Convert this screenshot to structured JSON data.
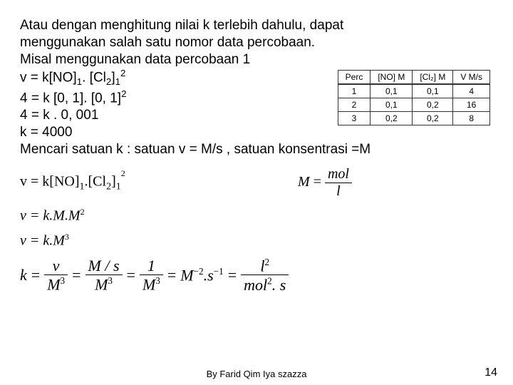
{
  "text": {
    "line1": "Atau dengan menghitung nilai k terlebih dahulu, dapat",
    "line2": "menggunakan salah satu nomor data percobaan.",
    "line3": "Misal menggunakan data percobaan 1",
    "line4a": "v = k[NO]",
    "line4b": ". [Cl",
    "line4c": "]",
    "line5a": "4 = k [0, 1]. [0, 1]",
    "line6": "4 = k . 0, 001",
    "line7": "k = 4000",
    "line8": "Mencari satuan k :  satuan v = M/s , satuan konsentrasi =M"
  },
  "subscripts": {
    "no": "1",
    "cl": "2",
    "cl_exp_sub": "1"
  },
  "superscripts": {
    "cl_exp": "2",
    "line5": "2"
  },
  "table": {
    "headers": [
      "Perc",
      "[NO] M",
      "[Cl₂] M",
      "V M/s"
    ],
    "rows": [
      [
        "1",
        "0,1",
        "0,1",
        "4"
      ],
      [
        "2",
        "0,1",
        "0,2",
        "16"
      ],
      [
        "3",
        "0,2",
        "0,2",
        "8"
      ]
    ]
  },
  "eq": {
    "e1a": "v = k[NO]",
    "e1b": ".[Cl",
    "e1c": "]",
    "e2": "v = k.M.M",
    "e3": "v = k.M",
    "m_eq": "M",
    "mol": "mol",
    "l": "l",
    "k_eq": "k",
    "v": "v",
    "M3": "M",
    "Ms": "M / s",
    "one": "1",
    "Mneg2": "M",
    "sneg1": ".s",
    "l2": "l",
    "molsq_s": "mol  . s",
    "eq_sign": "="
  },
  "footer": "By Farid Qim Iya szazza",
  "page": "14"
}
